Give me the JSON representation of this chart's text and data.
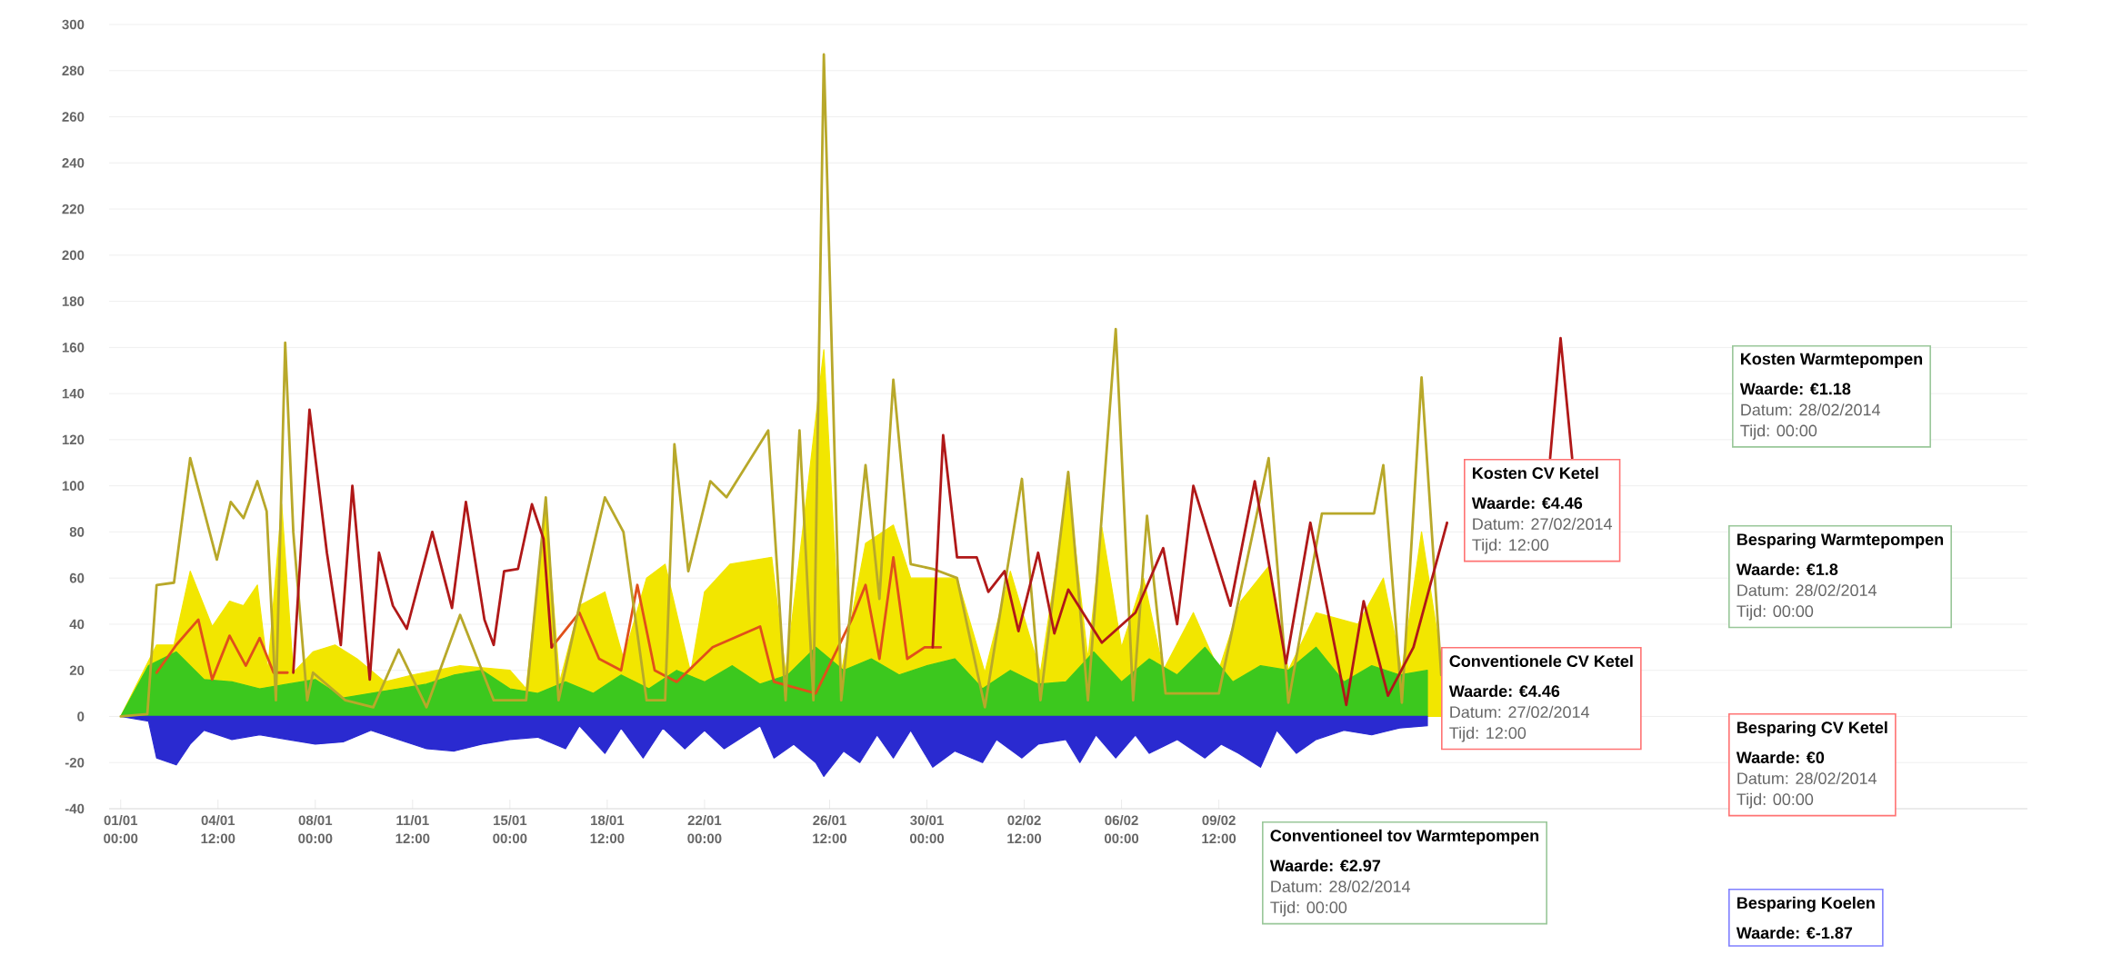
{
  "chart_data": {
    "type": "line",
    "xlim": [
      "2013-12-31T14:00",
      "2014-03-10T14:00"
    ],
    "xticks": [
      {
        "value": "2014-01-01T00:00",
        "label": "01/01 00:00"
      },
      {
        "value": "2014-01-04T12:00",
        "label": "04/01 12:00"
      },
      {
        "value": "2014-01-08T00:00",
        "label": "08/01 00:00"
      },
      {
        "value": "2014-01-11T12:00",
        "label": "11/01 12:00"
      },
      {
        "value": "2014-01-15T00:00",
        "label": "15/01 00:00"
      },
      {
        "value": "2014-01-18T12:00",
        "label": "18/01 12:00"
      },
      {
        "value": "2014-01-22T00:00",
        "label": "22/01 00:00"
      },
      {
        "value": "2014-01-26T12:00",
        "label": "26/01 12:00"
      },
      {
        "value": "2014-01-30T00:00",
        "label": "30/01 00:00"
      },
      {
        "value": "2014-02-02T12:00",
        "label": "02/02 12:00"
      },
      {
        "value": "2014-02-06T00:00",
        "label": "06/02 00:00"
      },
      {
        "value": "2014-02-09T12:00",
        "label": "09/02 12:00"
      }
    ],
    "ylim": [
      -40,
      300
    ],
    "yticks": [
      -40,
      -20,
      0,
      20,
      40,
      60,
      80,
      100,
      120,
      140,
      160,
      180,
      200,
      220,
      240,
      260,
      280,
      300
    ],
    "grid": "y",
    "annotations": [
      "Kosten CV Ketel",
      "Waarde: €4.46",
      "Datum: 27/02/2014",
      "Tijd: 12:00",
      "Conventionele CV Ketel",
      "Waarde: €4.46",
      "Datum: 27/02/2014",
      "Tijd: 12:00",
      "Kosten Warmtepompen",
      "Waarde: €1.18",
      "Datum: 28/02/2014",
      "Tijd: 00:00",
      "Besparing Warmtepompen",
      "Waarde: €1.8",
      "Datum: 28/02/2014",
      "Tijd: 00:00",
      "Besparing CV Ketel",
      "Waarde: €0",
      "Datum: 28/02/2014",
      "Tijd: 00:00",
      "Conventioneel tov Warmtepompen",
      "Waarde: €2.97",
      "Datum: 28/02/2014",
      "Tijd: 00:00",
      "Besparing Koelen",
      "Waarde: €-1.87"
    ],
    "series": [
      {
        "type": "area",
        "color": "#f2e600",
        "x": [
          "2014-01-01T00:00",
          "2014-01-01T23:00",
          "2014-01-02T07:00",
          "2014-01-02T22:00",
          "2014-01-03T12:00",
          "2014-01-04T07:00",
          "2014-01-04T22:00",
          "2014-01-05T10:00",
          "2014-01-05T22:00",
          "2014-01-06T07:00",
          "2014-01-06T19:00",
          "2014-01-07T05:00",
          "2014-01-07T22:00",
          "2014-01-08T17:00",
          "2014-01-09T12:00",
          "2014-01-10T12:00",
          "2014-01-11T12:00",
          "2014-01-12T12:00",
          "2014-01-13T05:00",
          "2014-01-14T00:00",
          "2014-01-15T00:00",
          "2014-01-15T14:00",
          "2014-01-16T07:00",
          "2014-01-16T19:00",
          "2014-01-17T12:00",
          "2014-01-18T10:00",
          "2014-01-19T02:00",
          "2014-01-19T22:00",
          "2014-01-20T14:00",
          "2014-01-21T12:00",
          "2014-01-22T00:00",
          "2014-01-22T22:00",
          "2014-01-24T10:00",
          "2014-01-24T22:00",
          "2014-01-25T10:00",
          "2014-01-25T22:00",
          "2014-01-26T07:00",
          "2014-01-26T22:00",
          "2014-01-27T19:00",
          "2014-01-28T19:00",
          "2014-01-29T10:00",
          "2014-01-31T02:00",
          "2014-02-01T02:00",
          "2014-02-02T00:00",
          "2014-02-03T02:00",
          "2014-02-04T02:00",
          "2014-02-04T19:00",
          "2014-02-05T07:00",
          "2014-02-06T00:00",
          "2014-02-06T19:00",
          "2014-02-07T12:00",
          "2014-02-08T14:00",
          "2014-02-09T12:00",
          "2014-02-10T07:00",
          "2014-02-11T07:00",
          "2014-02-12T00:00",
          "2014-02-13T00:00",
          "2014-02-14T12:00",
          "2014-02-15T10:00",
          "2014-02-16T02:00",
          "2014-02-16T19:00",
          "2014-02-17T12:00"
        ],
        "values": [
          0,
          null,
          31,
          31,
          63,
          39,
          50,
          48,
          57,
          20,
          92,
          19,
          28,
          31,
          25,
          15,
          18,
          null,
          22,
          null,
          20,
          12,
          90,
          15,
          48,
          54,
          25,
          60,
          66,
          19,
          54,
          66,
          69,
          19,
          69,
          null,
          159,
          19,
          75,
          83,
          60,
          60,
          19,
          63,
          19,
          100,
          25,
          82,
          30,
          60,
          20,
          45,
          20,
          50,
          65,
          20,
          45,
          40,
          60,
          20,
          80,
          25
        ]
      },
      {
        "type": "area",
        "color": "#3cc81e",
        "x": [
          "2014-01-01T00:00",
          "2014-01-02T00:00",
          "2014-01-03T00:00",
          "2014-01-04T00:00",
          "2014-01-05T00:00",
          "2014-01-06T00:00",
          "2014-01-07T00:00",
          "2014-01-08T00:00",
          "2014-01-09T00:00",
          "2014-01-10T00:00",
          "2014-01-11T00:00",
          "2014-01-12T00:00",
          "2014-01-13T00:00",
          "2014-01-14T00:00",
          "2014-01-15T00:00",
          "2014-01-16T00:00",
          "2014-01-17T00:00",
          "2014-01-18T00:00",
          "2014-01-19T00:00",
          "2014-01-20T00:00",
          "2014-01-21T00:00",
          "2014-01-22T00:00",
          "2014-01-23T00:00",
          "2014-01-24T00:00",
          "2014-01-25T00:00",
          "2014-01-26T00:00",
          "2014-01-27T00:00",
          "2014-01-28T00:00",
          "2014-01-29T00:00",
          "2014-01-30T00:00",
          "2014-01-31T00:00",
          "2014-02-01T00:00",
          "2014-02-02T00:00",
          "2014-02-03T00:00",
          "2014-02-04T00:00",
          "2014-02-05T00:00",
          "2014-02-06T00:00",
          "2014-02-07T00:00",
          "2014-02-08T00:00",
          "2014-02-09T00:00",
          "2014-02-10T00:00",
          "2014-02-11T00:00",
          "2014-02-12T00:00",
          "2014-02-13T00:00",
          "2014-02-14T00:00",
          "2014-02-15T00:00",
          "2014-02-16T00:00",
          "2014-02-17T00:00"
        ],
        "values": [
          0,
          22,
          28,
          16,
          15,
          12,
          14,
          16,
          8,
          10,
          12,
          14,
          18,
          20,
          12,
          10,
          15,
          10,
          18,
          12,
          20,
          15,
          22,
          14,
          18,
          30,
          20,
          25,
          18,
          22,
          25,
          12,
          20,
          14,
          15,
          28,
          15,
          25,
          18,
          30,
          15,
          22,
          20,
          30,
          15,
          22,
          18,
          20
        ]
      },
      {
        "type": "area",
        "color": "#2a2ad0",
        "x": [
          "2014-01-01T00:00",
          "2014-01-02T00:00",
          "2014-01-02T07:00",
          "2014-01-03T00:00",
          "2014-01-03T12:00",
          "2014-01-04T00:00",
          "2014-01-05T00:00",
          "2014-01-06T00:00",
          "2014-01-07T00:00",
          "2014-01-08T00:00",
          "2014-01-09T00:00",
          "2014-01-10T00:00",
          "2014-01-11T00:00",
          "2014-01-12T00:00",
          "2014-01-13T00:00",
          "2014-01-14T00:00",
          "2014-01-15T00:00",
          "2014-01-16T00:00",
          "2014-01-17T00:00",
          "2014-01-17T12:00",
          "2014-01-18T10:00",
          "2014-01-19T00:00",
          "2014-01-19T19:00",
          "2014-01-20T12:00",
          "2014-01-21T07:00",
          "2014-01-22T00:00",
          "2014-01-22T17:00",
          "2014-01-24T00:00",
          "2014-01-24T12:00",
          "2014-01-25T05:00",
          "2014-01-26T00:00",
          "2014-01-26T07:00",
          "2014-01-27T00:00",
          "2014-01-27T14:00",
          "2014-01-28T05:00",
          "2014-01-28T19:00",
          "2014-01-29T10:00",
          "2014-01-30T05:00",
          "2014-01-31T00:00",
          "2014-02-01T00:00",
          "2014-02-01T12:00",
          "2014-02-02T10:00",
          "2014-02-03T00:00",
          "2014-02-04T00:00",
          "2014-02-04T12:00",
          "2014-02-05T02:00",
          "2014-02-05T19:00",
          "2014-02-06T12:00",
          "2014-02-07T00:00",
          "2014-02-08T00:00",
          "2014-02-09T00:00",
          "2014-02-09T14:00",
          "2014-02-10T05:00",
          "2014-02-11T00:00",
          "2014-02-11T14:00",
          "2014-02-12T07:00",
          "2014-02-13T00:00",
          "2014-02-14T00:00",
          "2014-02-15T00:00",
          "2014-02-16T00:00",
          "2014-02-17T00:00"
        ],
        "values": [
          0,
          -2,
          -18,
          -21,
          -12,
          -6,
          -10,
          -8,
          -10,
          -12,
          -11,
          -6,
          -10,
          -14,
          -15,
          -12,
          -10,
          -9,
          -14,
          -4,
          -16,
          -5,
          -18,
          -5,
          -14,
          -6,
          -14,
          -4,
          -18,
          -12,
          -20,
          -26,
          -15,
          -20,
          -8,
          -18,
          -6,
          -22,
          -15,
          -20,
          -10,
          -18,
          -12,
          -10,
          -20,
          -8,
          -18,
          -8,
          -16,
          -10,
          -18,
          -12,
          -16,
          -22,
          -6,
          -16,
          -10,
          -6,
          -8,
          -5,
          -4
        ]
      },
      {
        "color": "#e0501a",
        "x": [
          "2014-01-02T07:00",
          "2014-01-03T00:00",
          "2014-01-03T19:00",
          "2014-01-04T07:00",
          "2014-01-04T22:00",
          "2014-01-05T12:00",
          "2014-01-06T00:00",
          "2014-01-06T12:00",
          "2014-01-07T00:00",
          "2014-01-10T00:00",
          "2014-01-16T12:00",
          "2014-01-17T12:00",
          "2014-01-18T05:00",
          "2014-01-19T00:00",
          "2014-01-19T14:00",
          "2014-01-20T05:00",
          "2014-01-21T00:00",
          "2014-01-22T07:00",
          "2014-01-24T00:00",
          "2014-01-24T12:00",
          "2014-01-26T00:00",
          "2014-01-27T07:00",
          "2014-01-27T19:00",
          "2014-01-28T07:00",
          "2014-01-28T19:00",
          "2014-01-29T07:00",
          "2014-01-29T22:00",
          "2014-01-30T12:00"
        ],
        "values": [
          19,
          31,
          42,
          16,
          35,
          22,
          34,
          19,
          19,
          null,
          30,
          45,
          25,
          20,
          57,
          20,
          15,
          30,
          39,
          15,
          10,
          42,
          57,
          25,
          69,
          25,
          30,
          30
        ]
      },
      {
        "color": "#b8a82a",
        "x": [
          "2014-01-01T00:00",
          "2014-01-01T23:00",
          "2014-01-02T07:00",
          "2014-01-02T22:00",
          "2014-01-03T12:00",
          "2014-01-04T11:00",
          "2014-01-04T23:00",
          "2014-01-05T10:00",
          "2014-01-05T22:00",
          "2014-01-06T06:00",
          "2014-01-06T14:00",
          "2014-01-06T22:00",
          "2014-01-07T05:00",
          "2014-01-07T17:00",
          "2014-01-07T22:00",
          "2014-01-09T02:00",
          "2014-01-10T02:00",
          "2014-01-11T00:00",
          "2014-01-12T00:00",
          "2014-01-13T05:00",
          "2014-01-14T10:00",
          "2014-01-15T14:00",
          "2014-01-16T07:00",
          "2014-01-16T18:00",
          "2014-01-17T12:00",
          "2014-01-18T10:00",
          "2014-01-19T02:00",
          "2014-01-19T22:00",
          "2014-01-20T14:00",
          "2014-01-20T22:00",
          "2014-01-21T10:00",
          "2014-01-22T05:00",
          "2014-01-22T19:00",
          "2014-01-24T07:00",
          "2014-01-24T22:00",
          "2014-01-25T10:00",
          "2014-01-25T22:00",
          "2014-01-26T07:00",
          "2014-01-26T22:00",
          "2014-01-27T19:00",
          "2014-01-28T07:00",
          "2014-01-28T19:00",
          "2014-01-29T10:00",
          "2014-01-30T05:00",
          "2014-01-31T02:00",
          "2014-02-01T02:00",
          "2014-02-02T10:00",
          "2014-02-03T02:00",
          "2014-02-04T02:00",
          "2014-02-04T19:00",
          "2014-02-05T19:00",
          "2014-02-06T10:00",
          "2014-02-06T22:00",
          "2014-02-07T14:00",
          "2014-02-09T12:00",
          "2014-02-11T07:00",
          "2014-02-12T00:00",
          "2014-02-13T05:00",
          "2014-02-15T02:00",
          "2014-02-15T10:00",
          "2014-02-16T02:00",
          "2014-02-16T19:00",
          "2014-02-17T12:00"
        ],
        "values": [
          0,
          1,
          57,
          58,
          112,
          68,
          93,
          86,
          102,
          89,
          7,
          162,
          80,
          7,
          19,
          7,
          4,
          29,
          4,
          44,
          7,
          7,
          95,
          7,
          48,
          95,
          80,
          7,
          7,
          118,
          63,
          102,
          95,
          124,
          7,
          124,
          7,
          287,
          7,
          109,
          51,
          146,
          66,
          64,
          60,
          4,
          103,
          7,
          106,
          7,
          168,
          7,
          87,
          10,
          10,
          112,
          6,
          88,
          88,
          109,
          6,
          147,
          18
        ]
      },
      {
        "color": "#b01818",
        "x": [
          "2014-01-07T05:00",
          "2014-01-07T19:00",
          "2014-01-08T10:00",
          "2014-01-08T22:00",
          "2014-01-09T08:00",
          "2014-01-09T23:00",
          "2014-01-10T07:00",
          "2014-01-10T19:00",
          "2014-01-11T07:00",
          "2014-01-12T05:00",
          "2014-01-12T22:00",
          "2014-01-13T10:00",
          "2014-01-14T02:00",
          "2014-01-14T10:00",
          "2014-01-14T19:00",
          "2014-01-15T07:00",
          "2014-01-15T19:00",
          "2014-01-16T05:00",
          "2014-01-16T12:00",
          "2014-01-20T00:00",
          "2014-01-30T05:00",
          "2014-01-30T14:00",
          "2014-01-31T02:00",
          "2014-01-31T19:00",
          "2014-02-01T05:00",
          "2014-02-01T19:00",
          "2014-02-02T07:00",
          "2014-02-03T00:00",
          "2014-02-03T14:00",
          "2014-02-04T02:00",
          "2014-02-05T07:00",
          "2014-02-06T12:00",
          "2014-02-07T12:00",
          "2014-02-08T00:00",
          "2014-02-08T14:00",
          "2014-02-09T22:00",
          "2014-02-10T19:00",
          "2014-02-11T22:00",
          "2014-02-12T19:00",
          "2014-02-14T02:00",
          "2014-02-14T17:00",
          "2014-02-15T14:00",
          "2014-02-16T12:00",
          "2014-02-17T17:00",
          "2014-02-19T00:00",
          "2014-02-21T10:00",
          "2014-02-21T19:00",
          "2014-02-22T05:00"
        ],
        "values": [
          19,
          133,
          71,
          31,
          100,
          16,
          71,
          48,
          38,
          80,
          47,
          93,
          42,
          31,
          63,
          64,
          92,
          77,
          30,
          null,
          30,
          122,
          69,
          69,
          54,
          63,
          37,
          71,
          36,
          55,
          32,
          45,
          73,
          40,
          100,
          48,
          102,
          23,
          84,
          5,
          50,
          9,
          30,
          84,
          null,
          112,
          164,
          112
        ]
      }
    ]
  }
}
